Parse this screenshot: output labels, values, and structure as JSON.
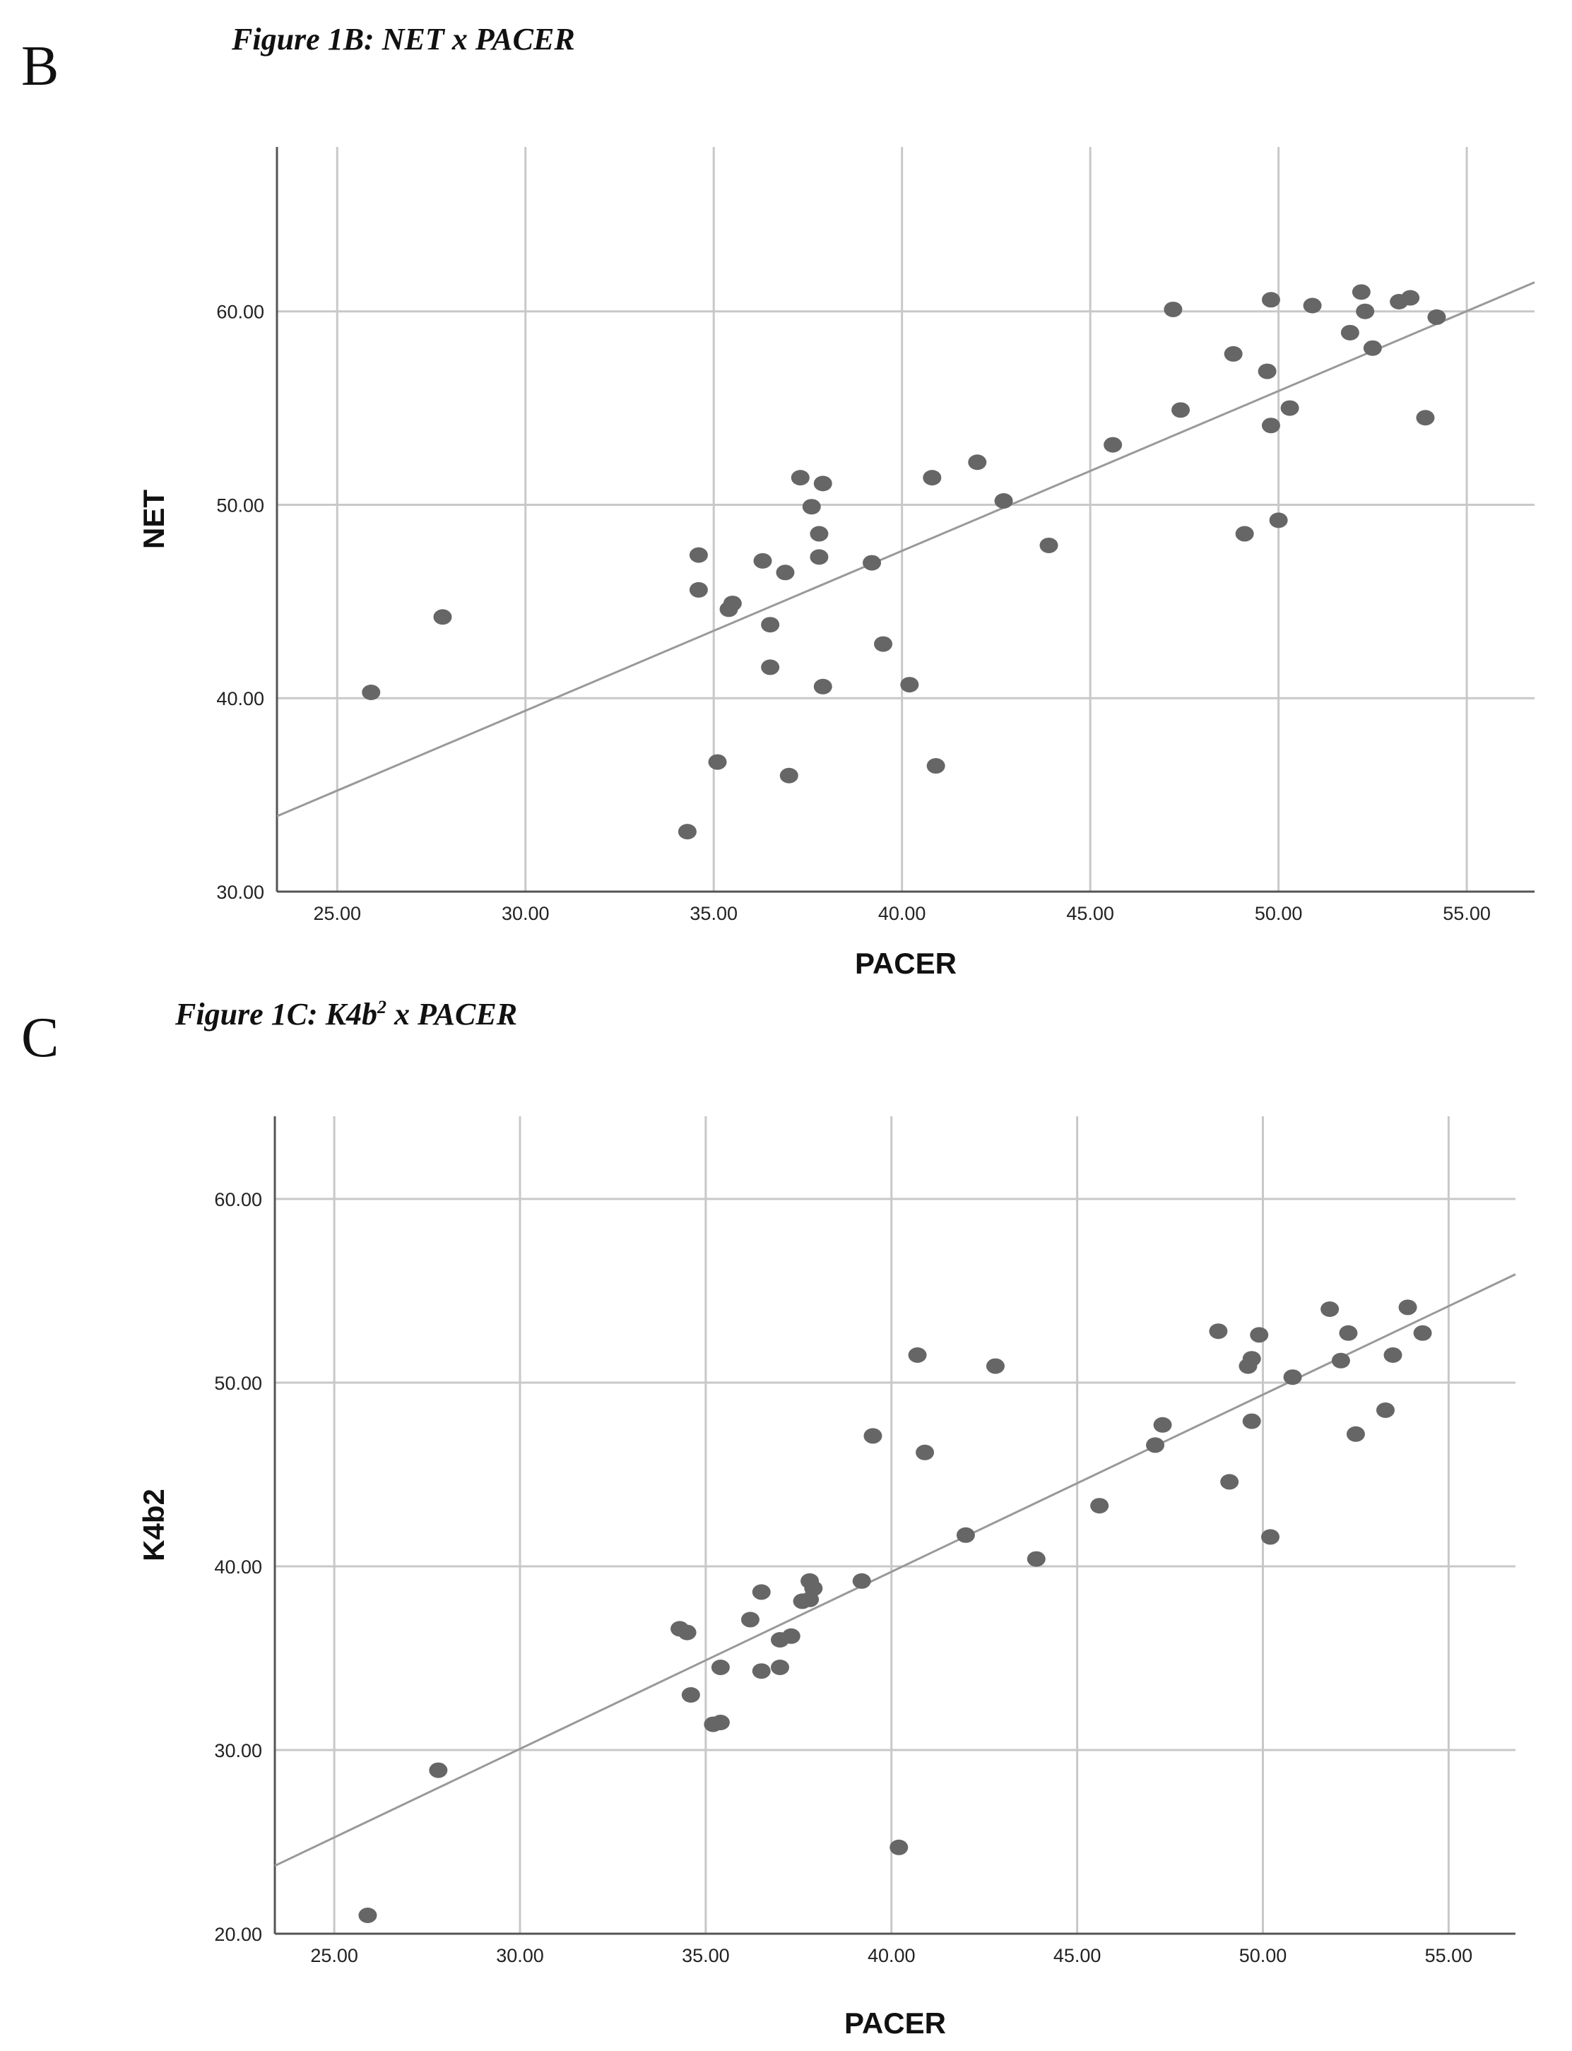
{
  "chart_data": [
    {
      "type": "scatter",
      "panel_label": "B",
      "title": "Figure 1B: NET x PACER",
      "xlabel": "PACER",
      "ylabel": "NET",
      "xlim": [
        23.4,
        56.8
      ],
      "ylim": [
        30,
        68.5
      ],
      "xticks": [
        "25.00",
        "30.00",
        "35.00",
        "40.00",
        "45.00",
        "50.00",
        "55.00"
      ],
      "yticks": [
        "30.00",
        "40.00",
        "50.00",
        "60.00"
      ],
      "xtick_values": [
        25,
        30,
        35,
        40,
        45,
        50,
        55
      ],
      "ytick_values": [
        30,
        40,
        50,
        60
      ],
      "fit_line": {
        "x": [
          23.4,
          56.8
        ],
        "y": [
          33.9,
          61.5
        ]
      },
      "points": [
        [
          25.9,
          40.3
        ],
        [
          27.8,
          44.2
        ],
        [
          34.3,
          33.1
        ],
        [
          34.6,
          47.4
        ],
        [
          34.6,
          45.6
        ],
        [
          35.1,
          36.7
        ],
        [
          35.4,
          44.6
        ],
        [
          35.5,
          44.9
        ],
        [
          36.3,
          47.1
        ],
        [
          36.5,
          43.8
        ],
        [
          36.5,
          41.6
        ],
        [
          36.9,
          46.5
        ],
        [
          37.0,
          36.0
        ],
        [
          37.3,
          51.4
        ],
        [
          37.6,
          49.9
        ],
        [
          37.8,
          47.3
        ],
        [
          37.8,
          48.5
        ],
        [
          37.9,
          51.1
        ],
        [
          37.9,
          40.6
        ],
        [
          39.2,
          47.0
        ],
        [
          39.5,
          42.8
        ],
        [
          40.2,
          40.7
        ],
        [
          40.8,
          51.4
        ],
        [
          40.9,
          36.5
        ],
        [
          42.0,
          52.2
        ],
        [
          42.7,
          50.2
        ],
        [
          43.9,
          47.9
        ],
        [
          45.6,
          53.1
        ],
        [
          47.2,
          60.1
        ],
        [
          47.4,
          54.9
        ],
        [
          48.8,
          57.8
        ],
        [
          49.1,
          48.5
        ],
        [
          49.7,
          56.9
        ],
        [
          49.8,
          60.6
        ],
        [
          49.8,
          54.1
        ],
        [
          50.0,
          49.2
        ],
        [
          50.3,
          55.0
        ],
        [
          50.9,
          60.3
        ],
        [
          51.9,
          58.9
        ],
        [
          52.2,
          61.0
        ],
        [
          52.3,
          60.0
        ],
        [
          52.5,
          58.1
        ],
        [
          53.2,
          60.5
        ],
        [
          53.5,
          60.7
        ],
        [
          53.9,
          54.5
        ],
        [
          54.2,
          59.7
        ]
      ]
    },
    {
      "type": "scatter",
      "panel_label": "C",
      "title_main": "Figure 1C: K4b",
      "title_sup": "2",
      "title_tail": " x PACER",
      "xlabel": "PACER",
      "ylabel": "K4b2",
      "xlim": [
        23.4,
        56.8
      ],
      "ylim": [
        20,
        64.5
      ],
      "xticks": [
        "25.00",
        "30.00",
        "35.00",
        "40.00",
        "45.00",
        "50.00",
        "55.00"
      ],
      "yticks": [
        "20.00",
        "30.00",
        "40.00",
        "50.00",
        "60.00"
      ],
      "xtick_values": [
        25,
        30,
        35,
        40,
        45,
        50,
        55
      ],
      "ytick_values": [
        20,
        30,
        40,
        50,
        60
      ],
      "fit_line": {
        "x": [
          23.4,
          56.8
        ],
        "y": [
          23.7,
          55.9
        ]
      },
      "points": [
        [
          25.9,
          21.0
        ],
        [
          27.8,
          28.9
        ],
        [
          34.3,
          36.6
        ],
        [
          34.5,
          36.4
        ],
        [
          34.6,
          33.0
        ],
        [
          35.2,
          31.4
        ],
        [
          35.4,
          31.5
        ],
        [
          35.4,
          34.5
        ],
        [
          36.2,
          37.1
        ],
        [
          36.5,
          38.6
        ],
        [
          36.5,
          34.3
        ],
        [
          37.0,
          34.5
        ],
        [
          37.0,
          36.0
        ],
        [
          37.3,
          36.2
        ],
        [
          37.6,
          38.1
        ],
        [
          37.8,
          39.2
        ],
        [
          37.8,
          38.2
        ],
        [
          37.9,
          38.8
        ],
        [
          39.2,
          39.2
        ],
        [
          39.5,
          47.1
        ],
        [
          40.2,
          24.7
        ],
        [
          40.7,
          51.5
        ],
        [
          40.9,
          46.2
        ],
        [
          42.0,
          41.7
        ],
        [
          42.8,
          50.9
        ],
        [
          43.9,
          40.4
        ],
        [
          45.6,
          43.3
        ],
        [
          47.1,
          46.6
        ],
        [
          47.3,
          47.7
        ],
        [
          48.8,
          52.8
        ],
        [
          49.1,
          44.6
        ],
        [
          49.6,
          50.9
        ],
        [
          49.7,
          51.3
        ],
        [
          49.7,
          47.9
        ],
        [
          49.9,
          52.6
        ],
        [
          50.2,
          41.6
        ],
        [
          50.8,
          50.3
        ],
        [
          51.8,
          54.0
        ],
        [
          52.1,
          51.2
        ],
        [
          52.3,
          52.7
        ],
        [
          52.5,
          47.2
        ],
        [
          53.3,
          48.5
        ],
        [
          53.5,
          51.5
        ],
        [
          53.9,
          54.1
        ],
        [
          54.3,
          52.7
        ]
      ]
    }
  ]
}
